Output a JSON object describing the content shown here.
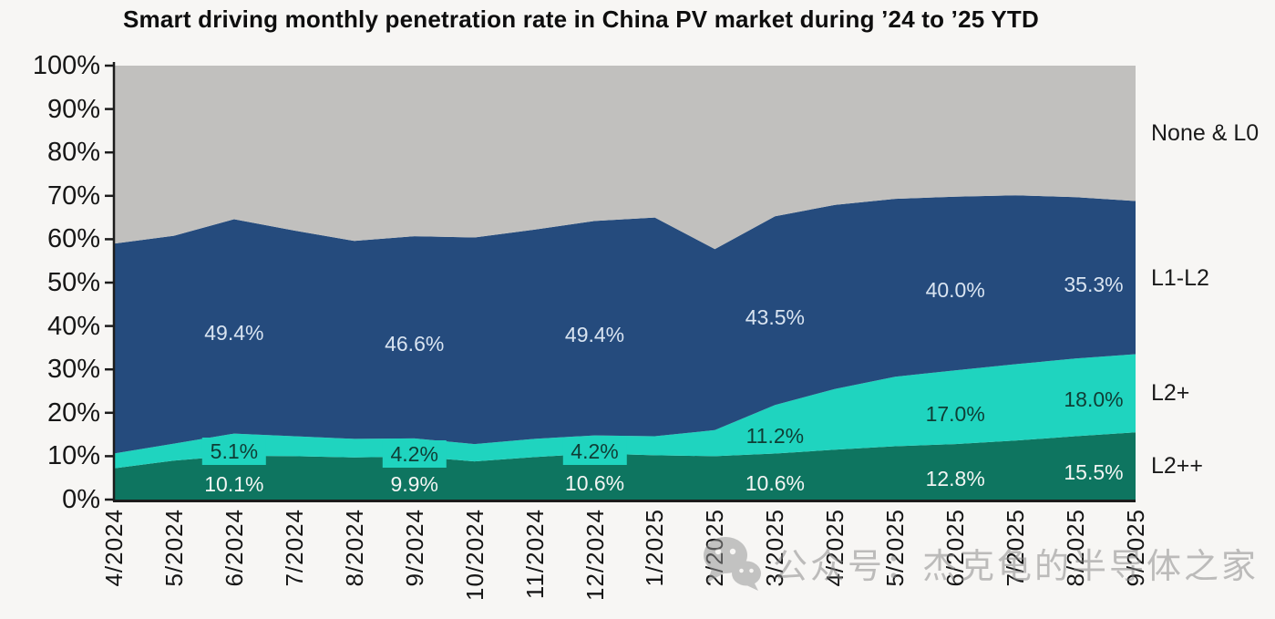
{
  "title": "Smart driving monthly penetration rate in China PV market during ’24 to ’25 YTD",
  "watermark": {
    "icon": "wechat-icon",
    "text": "公众号：杰克龟的半导体之家"
  },
  "chart_data": {
    "type": "area",
    "stacked": true,
    "title": "Smart driving monthly penetration rate in China PV market during ’24 to ’25 YTD",
    "xlabel": "",
    "ylabel": "",
    "ylim": [
      0,
      100
    ],
    "grid": false,
    "legend_position": "right",
    "yticks": [
      "0%",
      "10%",
      "20%",
      "30%",
      "40%",
      "50%",
      "60%",
      "70%",
      "80%",
      "90%",
      "100%"
    ],
    "x": [
      "4/2024",
      "5/2024",
      "6/2024",
      "7/2024",
      "8/2024",
      "9/2024",
      "10/2024",
      "11/2024",
      "12/2024",
      "1/2025",
      "2/2025",
      "3/2025",
      "4/2025",
      "5/2025",
      "6/2025",
      "7/2025",
      "8/2025",
      "9/2025"
    ],
    "series": [
      {
        "name": "L2++",
        "color": "#0E7560",
        "label_color": "#F3F5F3",
        "values": [
          7.2,
          9.0,
          10.1,
          10.0,
          9.7,
          9.9,
          8.8,
          9.8,
          10.6,
          10.2,
          10.0,
          10.6,
          11.5,
          12.3,
          12.8,
          13.6,
          14.6,
          15.5
        ]
      },
      {
        "name": "L2+",
        "color": "#1FD4BF",
        "label_color": "#0F3D35",
        "values": [
          3.4,
          3.9,
          5.1,
          4.6,
          4.3,
          4.2,
          4.0,
          4.2,
          4.2,
          4.4,
          6.0,
          11.2,
          14.0,
          16.0,
          17.0,
          17.6,
          17.9,
          18.0
        ]
      },
      {
        "name": "L1-L2",
        "color": "#254B7D",
        "label_color": "#D9E4F1",
        "values": [
          48.4,
          47.9,
          49.4,
          47.4,
          45.6,
          46.6,
          47.6,
          48.2,
          49.4,
          50.4,
          41.7,
          43.5,
          42.4,
          41.0,
          40.0,
          38.9,
          37.2,
          35.3
        ]
      },
      {
        "name": "None & L0",
        "color": "#C1C0BE",
        "label_color": "#1a1a1a",
        "values": [
          41.0,
          39.2,
          35.4,
          38.0,
          40.4,
          39.3,
          39.6,
          37.8,
          35.8,
          35.0,
          42.3,
          34.7,
          32.1,
          30.7,
          30.2,
          29.9,
          30.3,
          31.2
        ]
      }
    ],
    "labels": [
      {
        "series": "L1-L2",
        "month": "6/2024",
        "text": "49.4%"
      },
      {
        "series": "L1-L2",
        "month": "9/2024",
        "text": "46.6%"
      },
      {
        "series": "L1-L2",
        "month": "12/2024",
        "text": "49.4%"
      },
      {
        "series": "L1-L2",
        "month": "3/2025",
        "text": "43.5%"
      },
      {
        "series": "L1-L2",
        "month": "6/2025",
        "text": "40.0%"
      },
      {
        "series": "L1-L2",
        "month": "9/2025",
        "text": "35.3%",
        "dx": -46
      },
      {
        "series": "L2+",
        "month": "6/2024",
        "text": "5.1%",
        "boxed": true
      },
      {
        "series": "L2+",
        "month": "9/2024",
        "text": "4.2%",
        "boxed": true
      },
      {
        "series": "L2+",
        "month": "12/2024",
        "text": "4.2%",
        "boxed": true
      },
      {
        "series": "L2+",
        "month": "3/2025",
        "text": "11.2%"
      },
      {
        "series": "L2+",
        "month": "6/2025",
        "text": "17.0%"
      },
      {
        "series": "L2+",
        "month": "9/2025",
        "text": "18.0%",
        "dx": -46
      },
      {
        "series": "L2++",
        "month": "6/2024",
        "text": "10.1%"
      },
      {
        "series": "L2++",
        "month": "9/2024",
        "text": "9.9%"
      },
      {
        "series": "L2++",
        "month": "12/2024",
        "text": "10.6%"
      },
      {
        "series": "L2++",
        "month": "3/2025",
        "text": "10.6%"
      },
      {
        "series": "L2++",
        "month": "6/2025",
        "text": "12.8%"
      },
      {
        "series": "L2++",
        "month": "9/2025",
        "text": "15.5%",
        "dx": -46
      }
    ]
  }
}
